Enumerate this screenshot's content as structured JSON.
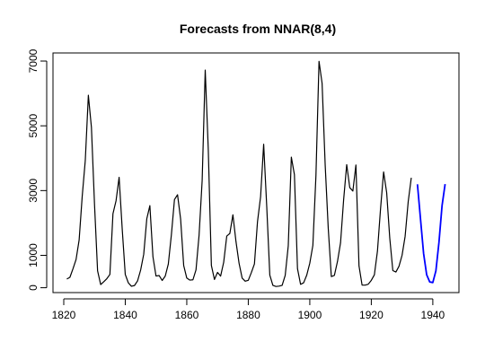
{
  "chart_data": {
    "type": "line",
    "title": "Forecasts from NNAR(8,4)",
    "xlabel": "",
    "ylabel": "",
    "xlim": [
      1816.5,
      1948.5
    ],
    "ylim": [
      -150,
      7250
    ],
    "grid": false,
    "legend": "none",
    "x_ticks": [
      1820,
      1840,
      1860,
      1880,
      1900,
      1920,
      1940
    ],
    "y_ticks": [
      0,
      1000,
      3000,
      5000,
      7000
    ],
    "series": [
      {
        "color": "#000000",
        "x_start": 1821,
        "values": [
          269,
          321,
          585,
          871,
          1475,
          2821,
          3928,
          5943,
          4950,
          2577,
          523,
          98,
          184,
          279,
          409,
          2285,
          2685,
          3409,
          1824,
          409,
          151,
          45,
          68,
          213,
          546,
          1033,
          2129,
          2536,
          957,
          361,
          377,
          225,
          360,
          731,
          1638,
          2725,
          2871,
          2119,
          684,
          299,
          236,
          245,
          552,
          1623,
          3311,
          6721,
          4254,
          687,
          255,
          473,
          358,
          784,
          1594,
          1676,
          2251,
          1426,
          756,
          299,
          201,
          229,
          469,
          736,
          2042,
          2811,
          4431,
          2511,
          389,
          73,
          39,
          49,
          73,
          378,
          1292,
          4031,
          3495,
          587,
          105,
          153,
          387,
          758,
          1307,
          3465,
          6991,
          6313,
          3794,
          1836,
          345,
          382,
          808,
          1388,
          2713,
          3800,
          3091,
          2985,
          3790,
          674,
          81,
          80,
          108,
          229,
          399,
          1132,
          2432,
          3574,
          2935,
          1537,
          529,
          485,
          662,
          1000,
          1590,
          2657,
          3396
        ]
      },
      {
        "color": "#0000ff",
        "x_start": 1935,
        "values": [
          3196,
          2120,
          1060,
          400,
          180,
          160,
          520,
          1400,
          2530,
          3200
        ]
      }
    ]
  }
}
